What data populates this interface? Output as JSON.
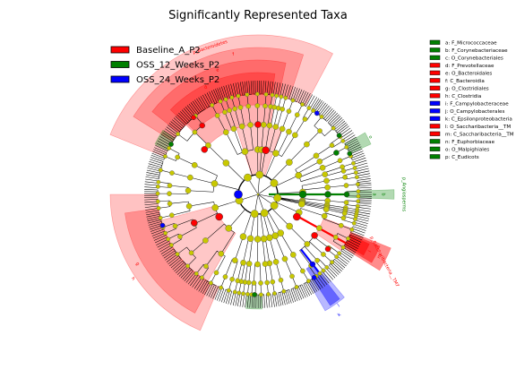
{
  "chart_data": {
    "type": "cladogram",
    "title": "Significantly Represented Taxa",
    "groups": [
      {
        "name": "Baseline_A_P2",
        "color": "#ff0000"
      },
      {
        "name": "OSS_12_Weeks_P2",
        "color": "#008000"
      },
      {
        "name": "OSS_24_Weeks_P2",
        "color": "#0000ff"
      }
    ],
    "node_color": "#c8c800",
    "taxa": [
      {
        "key": "a",
        "name": "F_Micrococcaceae",
        "group": "OSS_12_Weeks_P2"
      },
      {
        "key": "b",
        "name": "F_Corynebacteriaceae",
        "group": "OSS_12_Weeks_P2"
      },
      {
        "key": "c",
        "name": "O_Corynebacteriales",
        "group": "OSS_12_Weeks_P2"
      },
      {
        "key": "d",
        "name": "F_Prevotellaceae",
        "group": "Baseline_A_P2"
      },
      {
        "key": "e",
        "name": "O_Bacteroidales",
        "group": "Baseline_A_P2"
      },
      {
        "key": "f",
        "name": "C_Bacteroidia",
        "group": "Baseline_A_P2"
      },
      {
        "key": "g",
        "name": "O_Clostridiales",
        "group": "Baseline_A_P2"
      },
      {
        "key": "h",
        "name": "C_Clostridia",
        "group": "Baseline_A_P2"
      },
      {
        "key": "i",
        "name": "F_Campylobacteraceae",
        "group": "OSS_24_Weeks_P2"
      },
      {
        "key": "j",
        "name": "O_Campylobacterales",
        "group": "OSS_24_Weeks_P2"
      },
      {
        "key": "k",
        "name": "C_Epsilonproteobacteria",
        "group": "OSS_24_Weeks_P2"
      },
      {
        "key": "l",
        "name": "O_Saccharibacteria__TM",
        "group": "Baseline_A_P2"
      },
      {
        "key": "m",
        "name": "C_Saccharibacteria__TM",
        "group": "Baseline_A_P2"
      },
      {
        "key": "n",
        "name": "F_Euphorbiaceae",
        "group": "OSS_12_Weeks_P2"
      },
      {
        "key": "o",
        "name": "O_Malpighiales",
        "group": "OSS_12_Weeks_P2"
      },
      {
        "key": "p",
        "name": "C_Eudicots",
        "group": "OSS_12_Weeks_P2"
      }
    ],
    "phylum_labels": [
      {
        "text": "p_Bacteroidetes",
        "group": "Baseline_A_P2"
      },
      {
        "text": "p_Saccharibacteria__TM7",
        "group": "Baseline_A_P2"
      },
      {
        "text": "p_Angiosperms",
        "group": "OSS_12_Weeks_P2"
      }
    ],
    "legend_placement": "top-left",
    "key_placement": "right"
  }
}
